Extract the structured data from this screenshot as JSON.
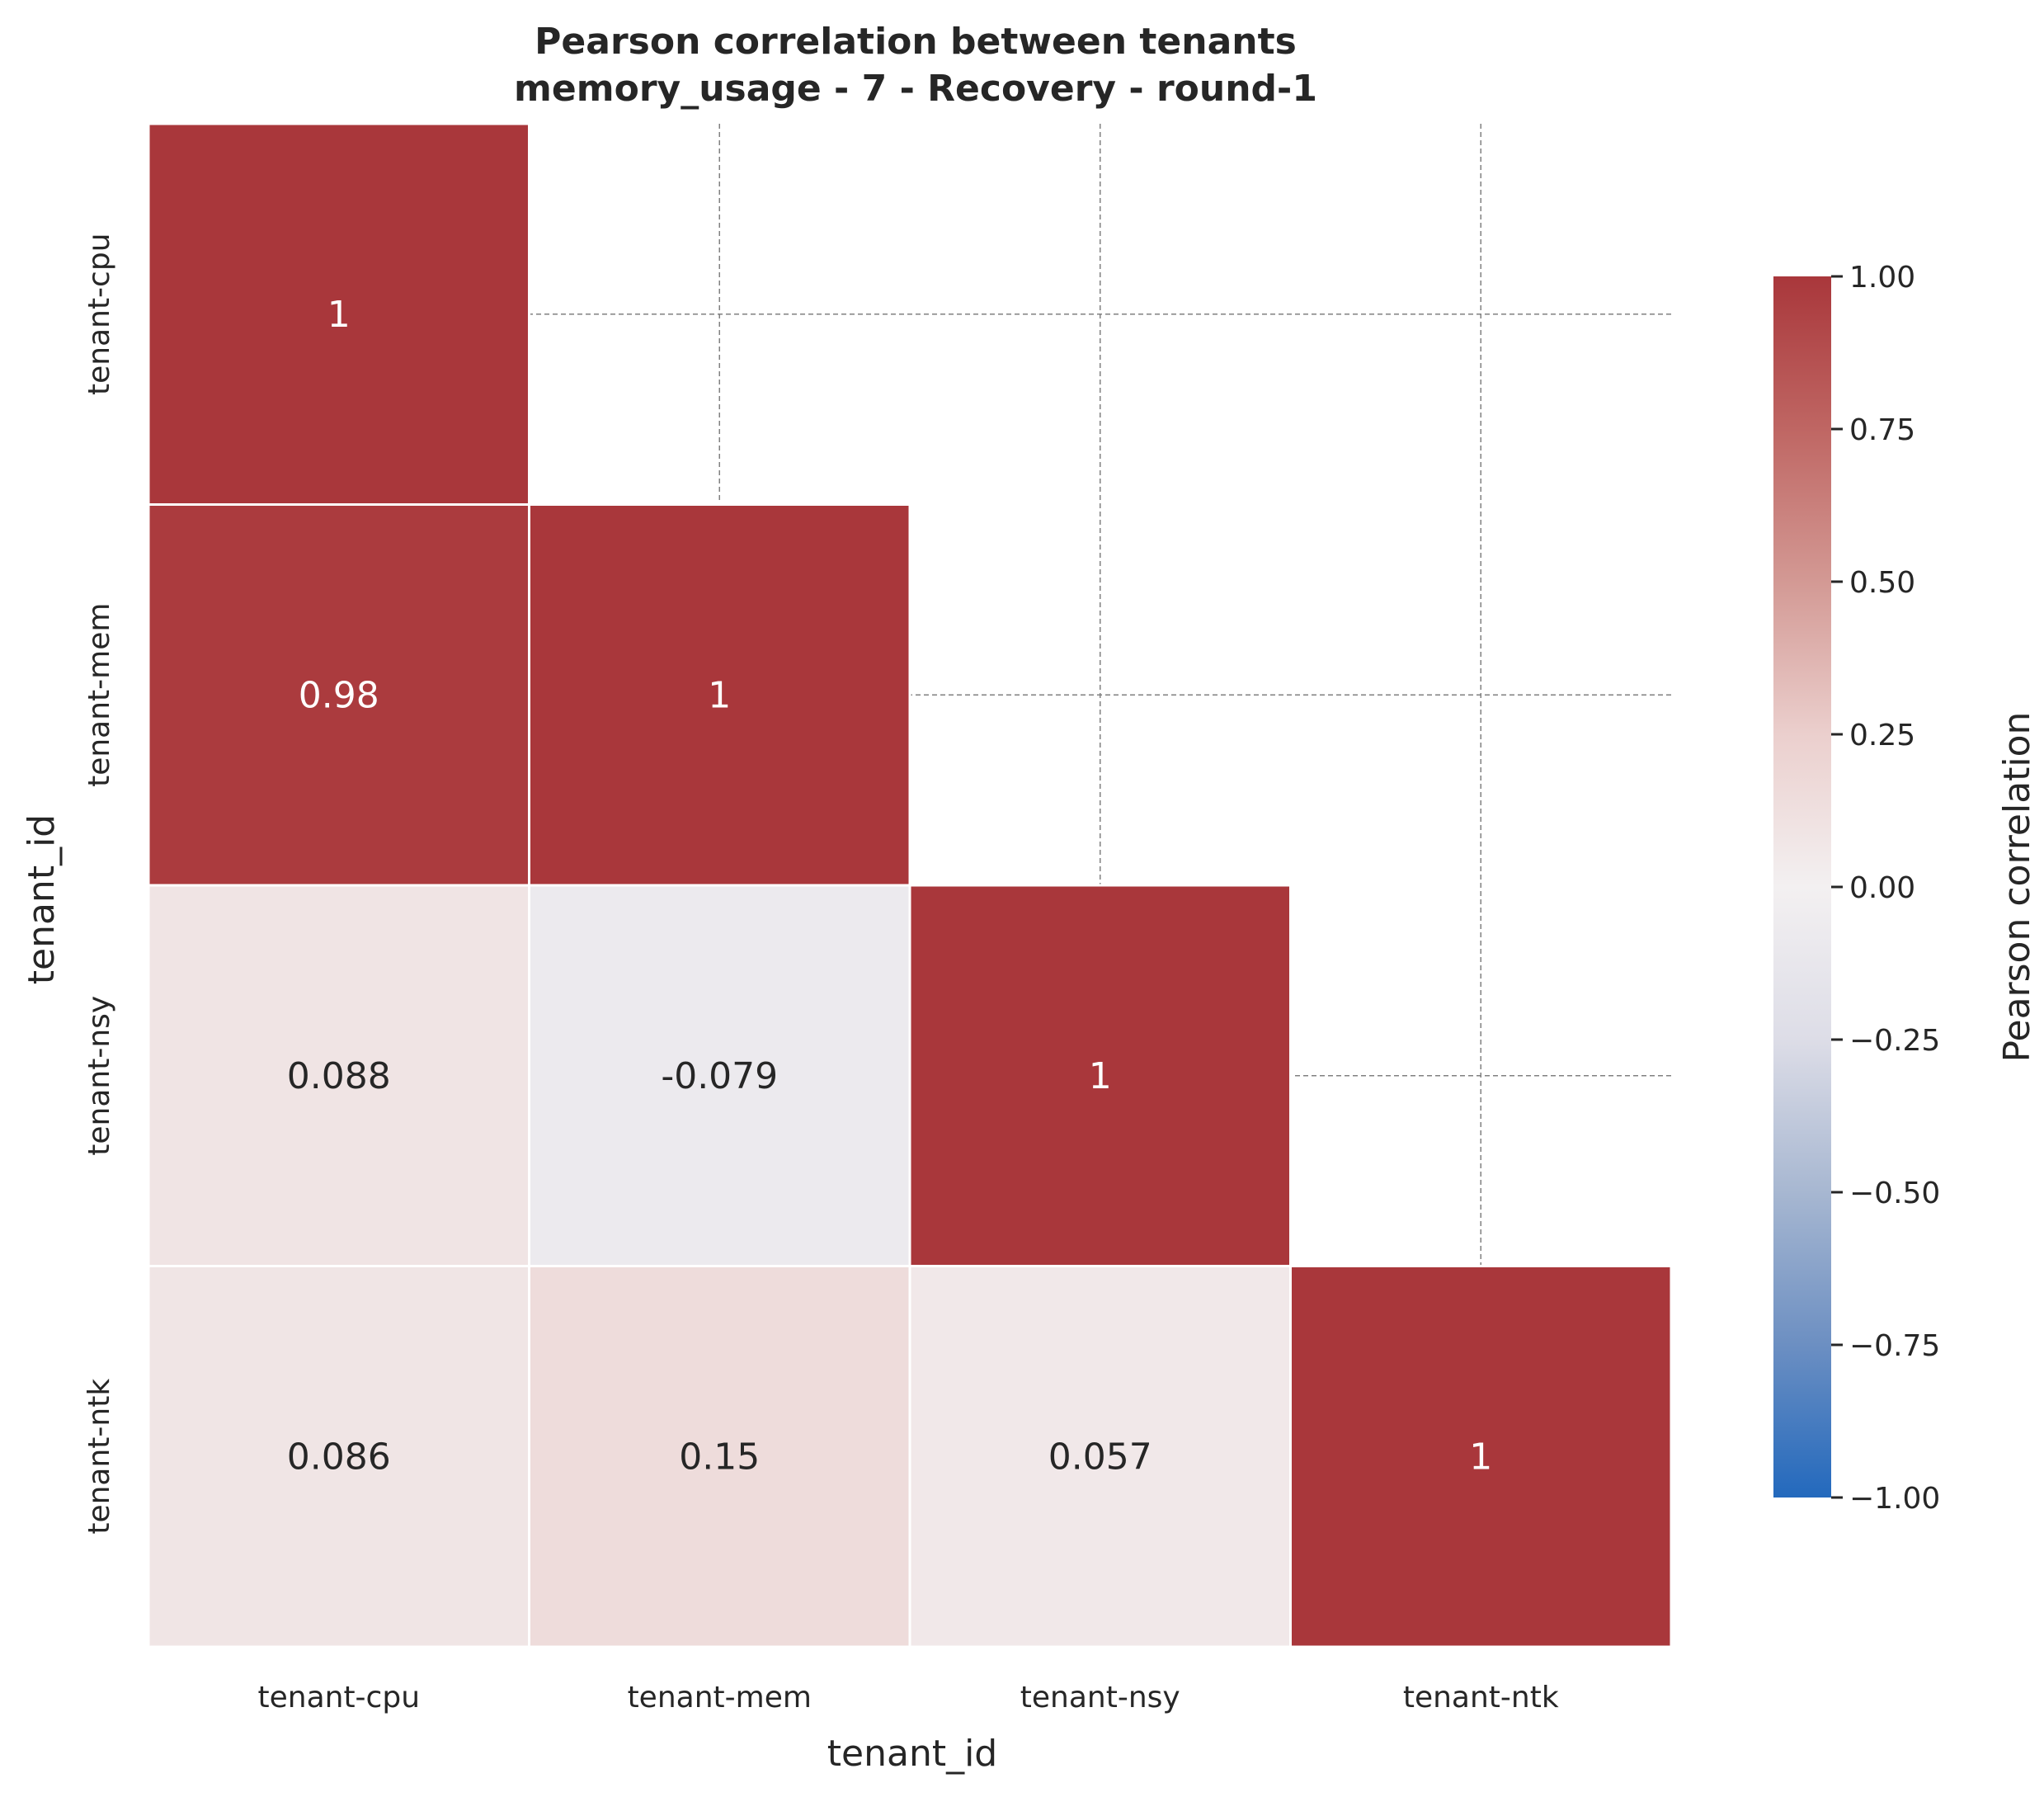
{
  "chart_data": {
    "type": "heatmap",
    "title": "Pearson correlation between tenants",
    "subtitle": "memory_usage - 7 - Recovery - round-1",
    "xlabel": "tenant_id",
    "ylabel": "tenant_id",
    "x_categories": [
      "tenant-cpu",
      "tenant-mem",
      "tenant-nsy",
      "tenant-ntk"
    ],
    "y_categories": [
      "tenant-cpu",
      "tenant-mem",
      "tenant-nsy",
      "tenant-ntk"
    ],
    "mask": "upper-triangle",
    "cells": [
      {
        "row": 0,
        "col": 0,
        "value": 1,
        "label": "1"
      },
      {
        "row": 1,
        "col": 0,
        "value": 0.98,
        "label": "0.98"
      },
      {
        "row": 1,
        "col": 1,
        "value": 1,
        "label": "1"
      },
      {
        "row": 2,
        "col": 0,
        "value": 0.088,
        "label": "0.088"
      },
      {
        "row": 2,
        "col": 1,
        "value": -0.079,
        "label": "-0.079"
      },
      {
        "row": 2,
        "col": 2,
        "value": 1,
        "label": "1"
      },
      {
        "row": 3,
        "col": 0,
        "value": 0.086,
        "label": "0.086"
      },
      {
        "row": 3,
        "col": 1,
        "value": 0.15,
        "label": "0.15"
      },
      {
        "row": 3,
        "col": 2,
        "value": 0.057,
        "label": "0.057"
      },
      {
        "row": 3,
        "col": 3,
        "value": 1,
        "label": "1"
      }
    ],
    "colorbar": {
      "label": "Pearson correlation",
      "range": [
        -1,
        1
      ],
      "ticks": [
        1,
        0.75,
        0.5,
        0.25,
        0,
        -0.25,
        -0.5,
        -0.75,
        -1
      ],
      "tick_labels": [
        "1.00",
        "0.75",
        "0.50",
        "0.25",
        "0.00",
        "−0.25",
        "−0.50",
        "−0.75",
        "−1.00"
      ],
      "colormap": "vlag",
      "color_stops": [
        "#2369bd",
        "#6c8fc2",
        "#a7b7d1",
        "#dddde7",
        "#f3f0f1",
        "#ebcfcd",
        "#d39994",
        "#bf6663",
        "#a9373b"
      ]
    },
    "grid": true
  }
}
